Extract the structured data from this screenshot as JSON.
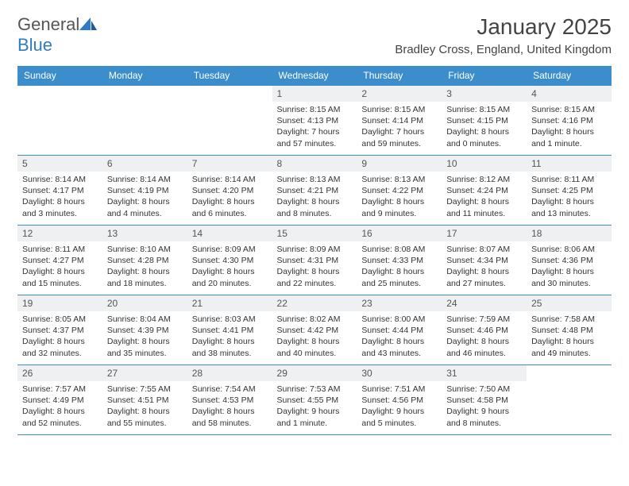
{
  "brand": {
    "word1": "General",
    "word2": "Blue"
  },
  "title": "January 2025",
  "location": "Bradley Cross, England, United Kingdom",
  "colors": {
    "header_bg": "#3c8dcc",
    "header_text": "#ffffff",
    "daynum_bg": "#eef0f2",
    "border": "#3c8dcc",
    "accent": "#2f7cc4"
  },
  "daysOfWeek": [
    "Sunday",
    "Monday",
    "Tuesday",
    "Wednesday",
    "Thursday",
    "Friday",
    "Saturday"
  ],
  "weeks": [
    [
      {
        "n": "",
        "sunrise": "",
        "sunset": "",
        "daylight": ""
      },
      {
        "n": "",
        "sunrise": "",
        "sunset": "",
        "daylight": ""
      },
      {
        "n": "",
        "sunrise": "",
        "sunset": "",
        "daylight": ""
      },
      {
        "n": "1",
        "sunrise": "Sunrise: 8:15 AM",
        "sunset": "Sunset: 4:13 PM",
        "daylight": "Daylight: 7 hours and 57 minutes."
      },
      {
        "n": "2",
        "sunrise": "Sunrise: 8:15 AM",
        "sunset": "Sunset: 4:14 PM",
        "daylight": "Daylight: 7 hours and 59 minutes."
      },
      {
        "n": "3",
        "sunrise": "Sunrise: 8:15 AM",
        "sunset": "Sunset: 4:15 PM",
        "daylight": "Daylight: 8 hours and 0 minutes."
      },
      {
        "n": "4",
        "sunrise": "Sunrise: 8:15 AM",
        "sunset": "Sunset: 4:16 PM",
        "daylight": "Daylight: 8 hours and 1 minute."
      }
    ],
    [
      {
        "n": "5",
        "sunrise": "Sunrise: 8:14 AM",
        "sunset": "Sunset: 4:17 PM",
        "daylight": "Daylight: 8 hours and 3 minutes."
      },
      {
        "n": "6",
        "sunrise": "Sunrise: 8:14 AM",
        "sunset": "Sunset: 4:19 PM",
        "daylight": "Daylight: 8 hours and 4 minutes."
      },
      {
        "n": "7",
        "sunrise": "Sunrise: 8:14 AM",
        "sunset": "Sunset: 4:20 PM",
        "daylight": "Daylight: 8 hours and 6 minutes."
      },
      {
        "n": "8",
        "sunrise": "Sunrise: 8:13 AM",
        "sunset": "Sunset: 4:21 PM",
        "daylight": "Daylight: 8 hours and 8 minutes."
      },
      {
        "n": "9",
        "sunrise": "Sunrise: 8:13 AM",
        "sunset": "Sunset: 4:22 PM",
        "daylight": "Daylight: 8 hours and 9 minutes."
      },
      {
        "n": "10",
        "sunrise": "Sunrise: 8:12 AM",
        "sunset": "Sunset: 4:24 PM",
        "daylight": "Daylight: 8 hours and 11 minutes."
      },
      {
        "n": "11",
        "sunrise": "Sunrise: 8:11 AM",
        "sunset": "Sunset: 4:25 PM",
        "daylight": "Daylight: 8 hours and 13 minutes."
      }
    ],
    [
      {
        "n": "12",
        "sunrise": "Sunrise: 8:11 AM",
        "sunset": "Sunset: 4:27 PM",
        "daylight": "Daylight: 8 hours and 15 minutes."
      },
      {
        "n": "13",
        "sunrise": "Sunrise: 8:10 AM",
        "sunset": "Sunset: 4:28 PM",
        "daylight": "Daylight: 8 hours and 18 minutes."
      },
      {
        "n": "14",
        "sunrise": "Sunrise: 8:09 AM",
        "sunset": "Sunset: 4:30 PM",
        "daylight": "Daylight: 8 hours and 20 minutes."
      },
      {
        "n": "15",
        "sunrise": "Sunrise: 8:09 AM",
        "sunset": "Sunset: 4:31 PM",
        "daylight": "Daylight: 8 hours and 22 minutes."
      },
      {
        "n": "16",
        "sunrise": "Sunrise: 8:08 AM",
        "sunset": "Sunset: 4:33 PM",
        "daylight": "Daylight: 8 hours and 25 minutes."
      },
      {
        "n": "17",
        "sunrise": "Sunrise: 8:07 AM",
        "sunset": "Sunset: 4:34 PM",
        "daylight": "Daylight: 8 hours and 27 minutes."
      },
      {
        "n": "18",
        "sunrise": "Sunrise: 8:06 AM",
        "sunset": "Sunset: 4:36 PM",
        "daylight": "Daylight: 8 hours and 30 minutes."
      }
    ],
    [
      {
        "n": "19",
        "sunrise": "Sunrise: 8:05 AM",
        "sunset": "Sunset: 4:37 PM",
        "daylight": "Daylight: 8 hours and 32 minutes."
      },
      {
        "n": "20",
        "sunrise": "Sunrise: 8:04 AM",
        "sunset": "Sunset: 4:39 PM",
        "daylight": "Daylight: 8 hours and 35 minutes."
      },
      {
        "n": "21",
        "sunrise": "Sunrise: 8:03 AM",
        "sunset": "Sunset: 4:41 PM",
        "daylight": "Daylight: 8 hours and 38 minutes."
      },
      {
        "n": "22",
        "sunrise": "Sunrise: 8:02 AM",
        "sunset": "Sunset: 4:42 PM",
        "daylight": "Daylight: 8 hours and 40 minutes."
      },
      {
        "n": "23",
        "sunrise": "Sunrise: 8:00 AM",
        "sunset": "Sunset: 4:44 PM",
        "daylight": "Daylight: 8 hours and 43 minutes."
      },
      {
        "n": "24",
        "sunrise": "Sunrise: 7:59 AM",
        "sunset": "Sunset: 4:46 PM",
        "daylight": "Daylight: 8 hours and 46 minutes."
      },
      {
        "n": "25",
        "sunrise": "Sunrise: 7:58 AM",
        "sunset": "Sunset: 4:48 PM",
        "daylight": "Daylight: 8 hours and 49 minutes."
      }
    ],
    [
      {
        "n": "26",
        "sunrise": "Sunrise: 7:57 AM",
        "sunset": "Sunset: 4:49 PM",
        "daylight": "Daylight: 8 hours and 52 minutes."
      },
      {
        "n": "27",
        "sunrise": "Sunrise: 7:55 AM",
        "sunset": "Sunset: 4:51 PM",
        "daylight": "Daylight: 8 hours and 55 minutes."
      },
      {
        "n": "28",
        "sunrise": "Sunrise: 7:54 AM",
        "sunset": "Sunset: 4:53 PM",
        "daylight": "Daylight: 8 hours and 58 minutes."
      },
      {
        "n": "29",
        "sunrise": "Sunrise: 7:53 AM",
        "sunset": "Sunset: 4:55 PM",
        "daylight": "Daylight: 9 hours and 1 minute."
      },
      {
        "n": "30",
        "sunrise": "Sunrise: 7:51 AM",
        "sunset": "Sunset: 4:56 PM",
        "daylight": "Daylight: 9 hours and 5 minutes."
      },
      {
        "n": "31",
        "sunrise": "Sunrise: 7:50 AM",
        "sunset": "Sunset: 4:58 PM",
        "daylight": "Daylight: 9 hours and 8 minutes."
      },
      {
        "n": "",
        "sunrise": "",
        "sunset": "",
        "daylight": ""
      }
    ]
  ]
}
